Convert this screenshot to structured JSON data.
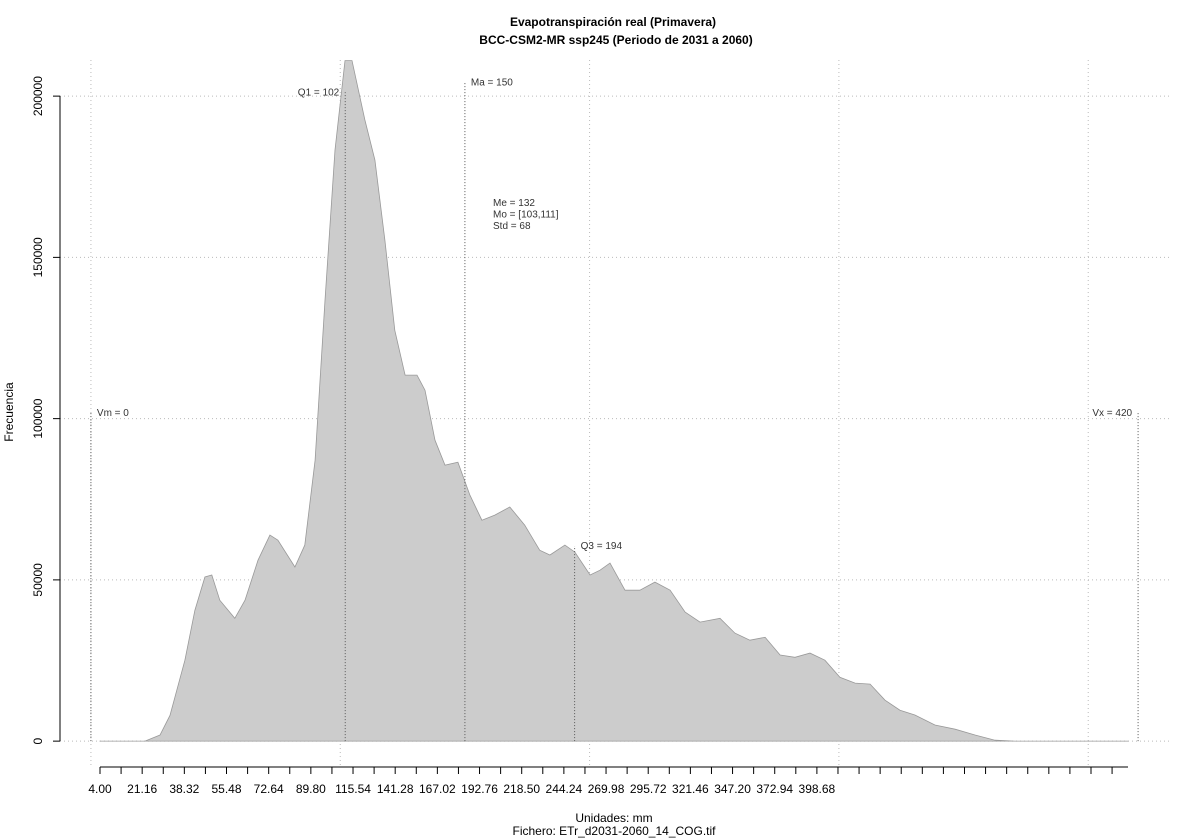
{
  "chart_data": {
    "type": "area",
    "title": "Evapotranspiración real (Primavera)",
    "subtitle": "BCC-CSM2-MR ssp245 (Periodo de 2031 a 2060)",
    "x_label": "Unidades: mm",
    "caption": "Fichero: ETr_d2031-2060_14_COG.tif",
    "y_label": "Frecuencia",
    "color": "#cccccc",
    "x": [
      3.6,
      21.7,
      27.7,
      31.7,
      37.7,
      41.7,
      45.7,
      48.5,
      51.7,
      57.7,
      61.8,
      67,
      71.8,
      75,
      81.8,
      85.8,
      89.9,
      93.9,
      97.9,
      101.9,
      104.7,
      109.9,
      113.9,
      117.9,
      121.9,
      126,
      130.8,
      134,
      138,
      142,
      147.2,
      152,
      156.8,
      162,
      168,
      174,
      180,
      184.1,
      190.1,
      194.1,
      200.2,
      204.2,
      208.2,
      214.2,
      220.2,
      226.2,
      232.3,
      238.3,
      244.3,
      252.3,
      258.3,
      264.3,
      270.4,
      276.4,
      282.4,
      288.4,
      294.4,
      300.4,
      306.5,
      312.5,
      318.5,
      324.5,
      330.5,
      338.5,
      346.6,
      354.6,
      362.6,
      370.6,
      416
    ],
    "y": [
      0,
      0,
      1900,
      8000,
      25100,
      40600,
      50900,
      51500,
      43700,
      38100,
      43700,
      56100,
      63900,
      62300,
      54000,
      60800,
      87100,
      136700,
      183300,
      211000,
      211000,
      192600,
      180200,
      155300,
      127400,
      113500,
      113500,
      108800,
      93300,
      85600,
      86500,
      76300,
      68500,
      70100,
      72600,
      67000,
      59200,
      57700,
      60800,
      58600,
      51500,
      53000,
      55200,
      46800,
      46800,
      49300,
      46800,
      40000,
      36900,
      38100,
      33500,
      31300,
      32200,
      26700,
      26000,
      27300,
      25100,
      19800,
      18000,
      17700,
      12700,
      9600,
      8100,
      5000,
      3700,
      1900,
      300,
      0,
      0
    ],
    "xlim": [
      -12.4,
      432.8
    ],
    "ylim": [
      -7400,
      211200
    ],
    "yticks": [
      0,
      50000,
      100000,
      150000,
      200000
    ],
    "xgrid": [
      0,
      100,
      200,
      300,
      400
    ],
    "xtick_labels": [
      "4.00",
      "21.16",
      "38.32",
      "55.48",
      "72.64",
      "89.80",
      "115.54",
      "141.28",
      "167.02",
      "192.76",
      "218.50",
      "244.24",
      "269.98",
      "295.72",
      "321.46",
      "347.20",
      "372.94",
      "398.68"
    ],
    "grid": true,
    "reference_lines": [
      {
        "label": "Vm = 0",
        "x": 0,
        "y": 101700
      },
      {
        "label": "Q1 = 102",
        "x": 102,
        "y": 201200
      },
      {
        "label": "Ma = 150",
        "x": 150,
        "y": 204300
      },
      {
        "label": "Q3 = 194",
        "x": 194,
        "y": 60500
      },
      {
        "label": "Vx = 420",
        "x": 420,
        "y": 101700
      }
    ],
    "annotations": [
      "Me = 132",
      "Mo = [103,111]",
      "Std = 68"
    ]
  }
}
